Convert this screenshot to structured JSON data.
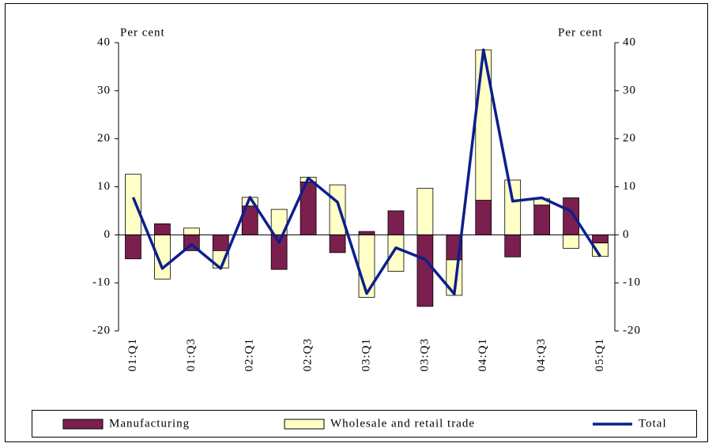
{
  "chart_data": {
    "type": "bar",
    "y_label": "Per cent",
    "y2_label": "Per cent",
    "categories": [
      "01:Q1",
      null,
      "01:Q3",
      null,
      "02:Q1",
      null,
      "02:Q3",
      null,
      "03:Q1",
      null,
      "03:Q3",
      null,
      "04:Q1",
      null,
      "04:Q3",
      null,
      "05:Q1"
    ],
    "series": [
      {
        "name": "Manufacturing",
        "type": "bar",
        "color": "#7b1f4f",
        "values": [
          -5,
          2.3,
          -3.3,
          -3.3,
          6,
          -7.2,
          11,
          -3.7,
          0.7,
          5,
          -14.9,
          -5.2,
          7.2,
          -4.6,
          6.2,
          7.7,
          -1.7
        ]
      },
      {
        "name": "Wholesale and retail trade",
        "type": "bar",
        "color": "#ffffc6",
        "values": [
          12.6,
          -9.2,
          1.4,
          -3.6,
          1.8,
          5.3,
          1,
          10.4,
          -13,
          -7.6,
          9.7,
          -7.4,
          31.3,
          11.4,
          1.3,
          -2.8,
          -2.8
        ]
      },
      {
        "name": "Total",
        "type": "line",
        "color": "#0c1f8c",
        "values": [
          7.8,
          -7,
          -2,
          -7,
          7.8,
          -1.6,
          11.8,
          6.8,
          -12.2,
          -2.7,
          -5.1,
          -12.3,
          38.5,
          7,
          7.7,
          4.9,
          -4.5
        ]
      }
    ],
    "ylim": [
      -20,
      40
    ],
    "yticks": [
      -20,
      -10,
      0,
      10,
      20,
      30,
      40
    ],
    "y2lim": [
      -20,
      40
    ],
    "y2ticks": [
      -20,
      -10,
      0,
      10,
      20,
      30,
      40
    ]
  }
}
